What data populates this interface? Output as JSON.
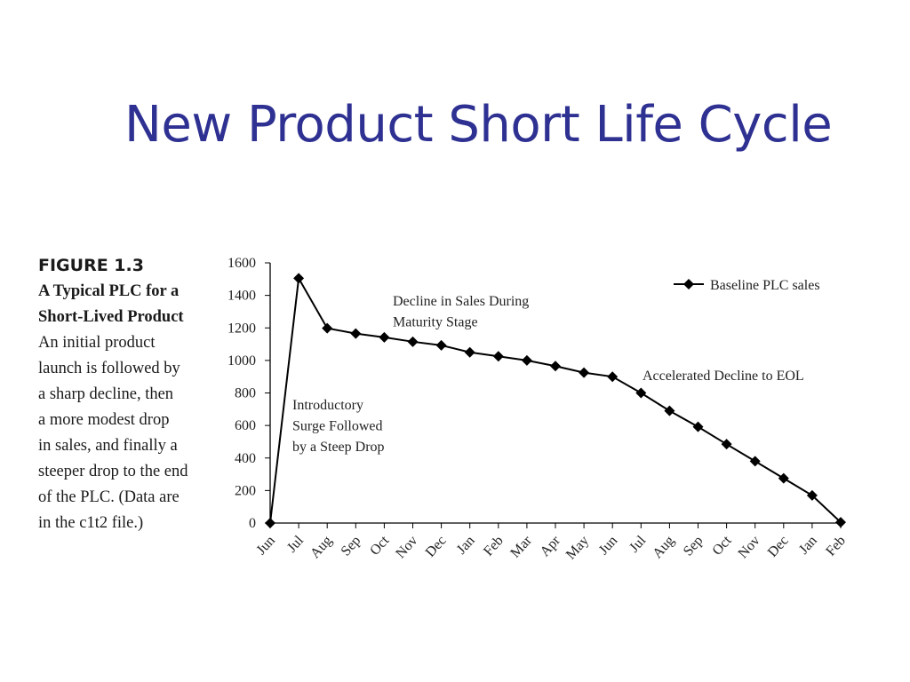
{
  "slide": {
    "title": "New Product Short Life Cycle"
  },
  "caption": {
    "figure_label": "FIGURE 1.3",
    "heading_lines": [
      "A Typical PLC for a",
      "Short-Lived Product"
    ],
    "body_lines": [
      "An initial product",
      "launch is followed by",
      "a sharp decline, then",
      "a more modest drop",
      "in sales, and finally a",
      "steeper drop to the end",
      "of the PLC. (Data are",
      "in the c1t2 file.)"
    ]
  },
  "chart_data": {
    "type": "line",
    "categories": [
      "Jun",
      "Jul",
      "Aug",
      "Sep",
      "Oct",
      "Nov",
      "Dec",
      "Jan",
      "Feb",
      "Mar",
      "Apr",
      "May",
      "Jun",
      "Jul",
      "Aug",
      "Sep",
      "Oct",
      "Nov",
      "Dec",
      "Jan",
      "Feb"
    ],
    "series": [
      {
        "name": "Baseline PLC sales",
        "values": [
          0,
          1505,
          1198,
          1165,
          1142,
          1115,
          1093,
          1050,
          1025,
          1000,
          965,
          925,
          900,
          800,
          690,
          592,
          485,
          380,
          275,
          170,
          5
        ],
        "color": "#000000",
        "marker": "diamond"
      }
    ],
    "ylim": [
      0,
      1600
    ],
    "yticks": [
      0,
      200,
      400,
      600,
      800,
      1000,
      1200,
      1400,
      1600
    ],
    "xlabel": "",
    "ylabel": "",
    "grid": false,
    "legend_position": "top-right",
    "annotations": [
      {
        "id": "maturity",
        "lines": [
          "Decline in Sales During",
          "Maturity Stage"
        ]
      },
      {
        "id": "eol",
        "lines": [
          "Accelerated Decline to EOL"
        ]
      },
      {
        "id": "intro",
        "lines": [
          "Introductory",
          "Surge Followed",
          "by a Steep Drop"
        ]
      }
    ]
  }
}
